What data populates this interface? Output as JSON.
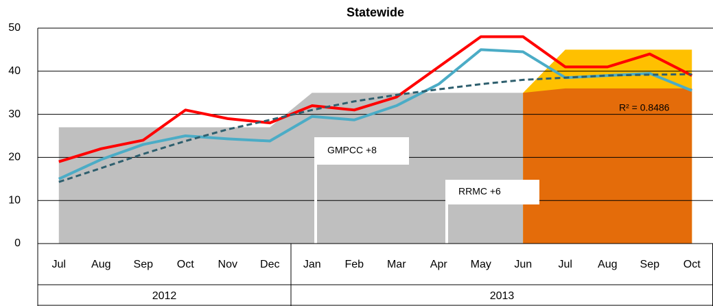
{
  "chart_data": {
    "type": "line",
    "title": "Statewide",
    "categories": [
      "Jul",
      "Aug",
      "Sep",
      "Oct",
      "Nov",
      "Dec",
      "Jan",
      "Feb",
      "Mar",
      "Apr",
      "May",
      "Jun",
      "Jul",
      "Aug",
      "Sep",
      "Oct"
    ],
    "groups": [
      {
        "label": "2012",
        "count": 6
      },
      {
        "label": "2013",
        "count": 10
      }
    ],
    "ylim": [
      0,
      50
    ],
    "yticks": [
      0,
      10,
      20,
      30,
      40,
      50
    ],
    "grid": true,
    "series": [
      {
        "type": "area",
        "color": "#bfbfbf",
        "values": [
          27,
          27,
          27,
          27,
          27,
          27,
          35,
          35,
          35,
          35,
          35,
          35,
          35,
          35,
          35,
          35
        ]
      },
      {
        "type": "area",
        "color": "#ffc000",
        "values": [
          null,
          null,
          null,
          null,
          null,
          null,
          null,
          null,
          null,
          null,
          null,
          35,
          45,
          45,
          45,
          45
        ]
      },
      {
        "type": "area",
        "color": "#e46c0a",
        "values": [
          null,
          null,
          null,
          null,
          null,
          null,
          null,
          null,
          null,
          null,
          null,
          35,
          36,
          36,
          36,
          36
        ]
      },
      {
        "type": "line",
        "color": "#ff0000",
        "values": [
          19,
          22,
          24,
          31,
          29,
          28,
          32,
          31,
          34,
          41,
          48,
          48,
          41,
          41,
          44,
          39
        ]
      },
      {
        "type": "line",
        "color": "#4bacc6",
        "values": [
          15,
          19.5,
          23,
          25,
          24.3,
          23.8,
          29.5,
          28.7,
          32,
          37,
          45,
          44.5,
          38.5,
          39,
          39.5,
          35.5
        ]
      },
      {
        "type": "line",
        "color": "#2e5f6e",
        "dashed": true,
        "values": [
          14.3,
          17.5,
          20.8,
          23.8,
          26.5,
          28.7,
          31,
          33,
          34.5,
          35.8,
          37,
          38,
          38.5,
          39,
          39.2,
          39.3
        ]
      }
    ],
    "annotations": [
      {
        "text": "R² = 0.8486"
      },
      {
        "text": "GMPCC +8"
      },
      {
        "text": "RRMC +6"
      }
    ]
  }
}
